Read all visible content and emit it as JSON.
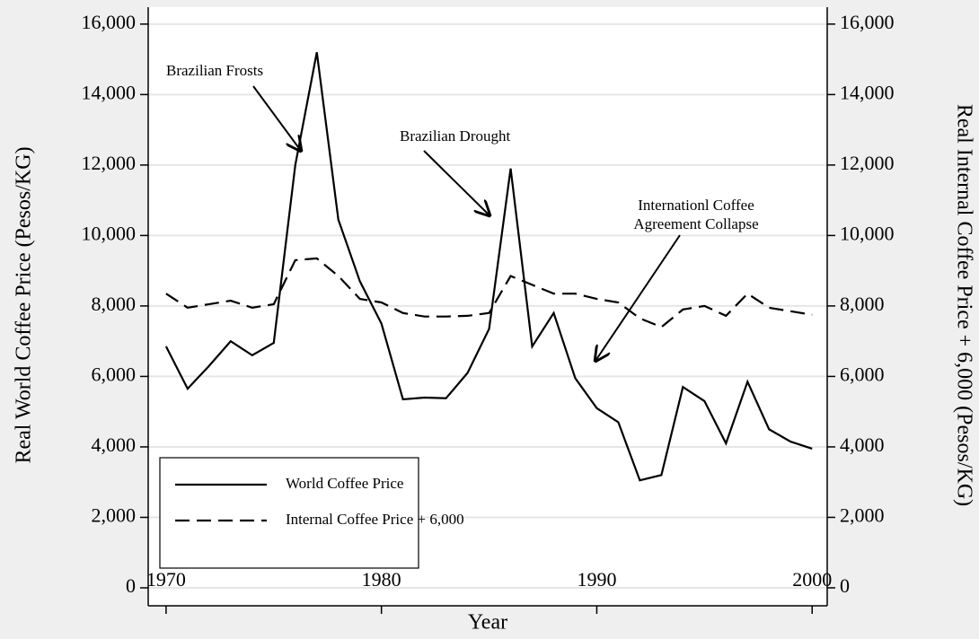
{
  "chart_data": {
    "type": "line",
    "x_label": "Year",
    "y_label": "Real World Coffee Price (Pesos/KG)",
    "y2_label": "Real Internal Coffee Price + 6,000 (Pesos/KG)",
    "x": [
      1970,
      1971,
      1972,
      1973,
      1974,
      1975,
      1976,
      1977,
      1978,
      1979,
      1980,
      1981,
      1982,
      1983,
      1984,
      1985,
      1986,
      1987,
      1988,
      1989,
      1990,
      1991,
      1992,
      1993,
      1994,
      1995,
      1996,
      1997,
      1998,
      1999,
      2000
    ],
    "series": [
      {
        "name": "World Coffee Price",
        "color": "#000000",
        "dash": "solid",
        "values": [
          6850,
          5650,
          6300,
          7000,
          6600,
          6950,
          12000,
          15200,
          10450,
          8700,
          7500,
          5350,
          5400,
          5380,
          6100,
          7350,
          11900,
          6850,
          7800,
          5950,
          5100,
          4700,
          3050,
          3200,
          5700,
          5300,
          4100,
          5850,
          4500,
          4150,
          3950
        ]
      },
      {
        "name": "Internal Coffee Price + 6,000",
        "color": "#000000",
        "dash": "dashed",
        "axis": "y2",
        "values": [
          8350,
          7950,
          8050,
          8150,
          7950,
          8050,
          9300,
          9350,
          8850,
          8200,
          8100,
          7800,
          7700,
          7700,
          7720,
          7800,
          8850,
          8600,
          8350,
          8350,
          8200,
          8100,
          7650,
          7400,
          7900,
          8000,
          7720,
          8350,
          7950,
          7850,
          7750
        ]
      }
    ],
    "xlim": [
      1969.17,
      2000.7
    ],
    "xticks": [
      1970,
      1980,
      1990,
      2000
    ],
    "ylim": [
      -510,
      16480
    ],
    "yticks": [
      0,
      {
        "value": 2000,
        "label": "2,000"
      },
      {
        "value": 4000,
        "label": "4,000"
      },
      {
        "value": 6000,
        "label": "6,000"
      },
      {
        "value": 8000,
        "label": "8,000"
      },
      {
        "value": 10000,
        "label": "10,000"
      },
      {
        "value": 12000,
        "label": "12,000"
      },
      {
        "value": 14000,
        "label": "14,000"
      },
      {
        "value": 16000,
        "label": "16,000"
      }
    ],
    "y2lim": [
      -510,
      16480
    ],
    "y2ticks": [
      0,
      {
        "value": 2000,
        "label": "2,000"
      },
      {
        "value": 4000,
        "label": "4,000"
      },
      {
        "value": 6000,
        "label": "6,000"
      },
      {
        "value": 8000,
        "label": "8,000"
      },
      {
        "value": 10000,
        "label": "10,000"
      },
      {
        "value": 12000,
        "label": "12,000"
      },
      {
        "value": 14000,
        "label": "14,000"
      },
      {
        "value": 16000,
        "label": "16,000"
      }
    ],
    "grid": true,
    "legend": "lower left",
    "annotations": [
      {
        "text": [
          "Brazilian Frosts"
        ]
      },
      {
        "text": [
          "Brazilian Drought"
        ]
      },
      {
        "text": [
          "Internationl Coffee",
          "Agreement Collapse"
        ]
      }
    ]
  }
}
